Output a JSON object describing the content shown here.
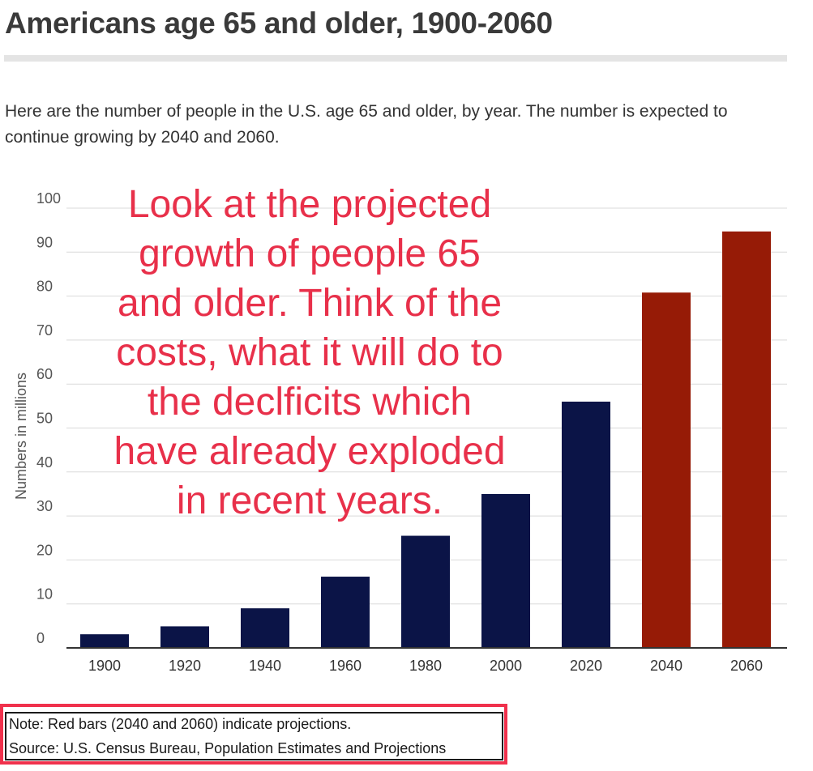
{
  "page": {
    "title": "Americans age 65 and older, 1900-2060",
    "subtitle": "Here are the number of people in the U.S. age 65 and older, by year. The number is expected to continue growing by 2040 and 2060.",
    "annotation": "Look at the projected\ngrowth of people 65\nand older. Think of the\ncosts, what it will do to\nthe declficits which\nhave already exploded\nin recent years."
  },
  "note": {
    "note_line": "Note: Red bars (2040 and 2060) indicate projections.",
    "source_line": "Source: U.S. Census Bureau, Population Estimates and Projections"
  },
  "colors": {
    "historical_bar": "#0b1447",
    "projection_bar": "#961b06",
    "annotation_text": "#e8304a",
    "note_box_border": "#f0314c"
  },
  "chart_data": {
    "type": "bar",
    "title": "Americans age 65 and older, 1900-2060",
    "xlabel": "",
    "ylabel": "Numbers in millions",
    "categories": [
      "1900",
      "1920",
      "1940",
      "1960",
      "1980",
      "2000",
      "2020",
      "2040",
      "2060"
    ],
    "values": [
      3.1,
      4.9,
      9.0,
      16.2,
      25.5,
      35.0,
      56.0,
      80.8,
      94.7
    ],
    "projected": [
      false,
      false,
      false,
      false,
      false,
      false,
      false,
      true,
      true
    ],
    "ylim": [
      0,
      100
    ],
    "yticks": [
      0,
      10,
      20,
      30,
      40,
      50,
      60,
      70,
      80,
      90,
      100
    ],
    "grid": true,
    "legend": "none"
  }
}
